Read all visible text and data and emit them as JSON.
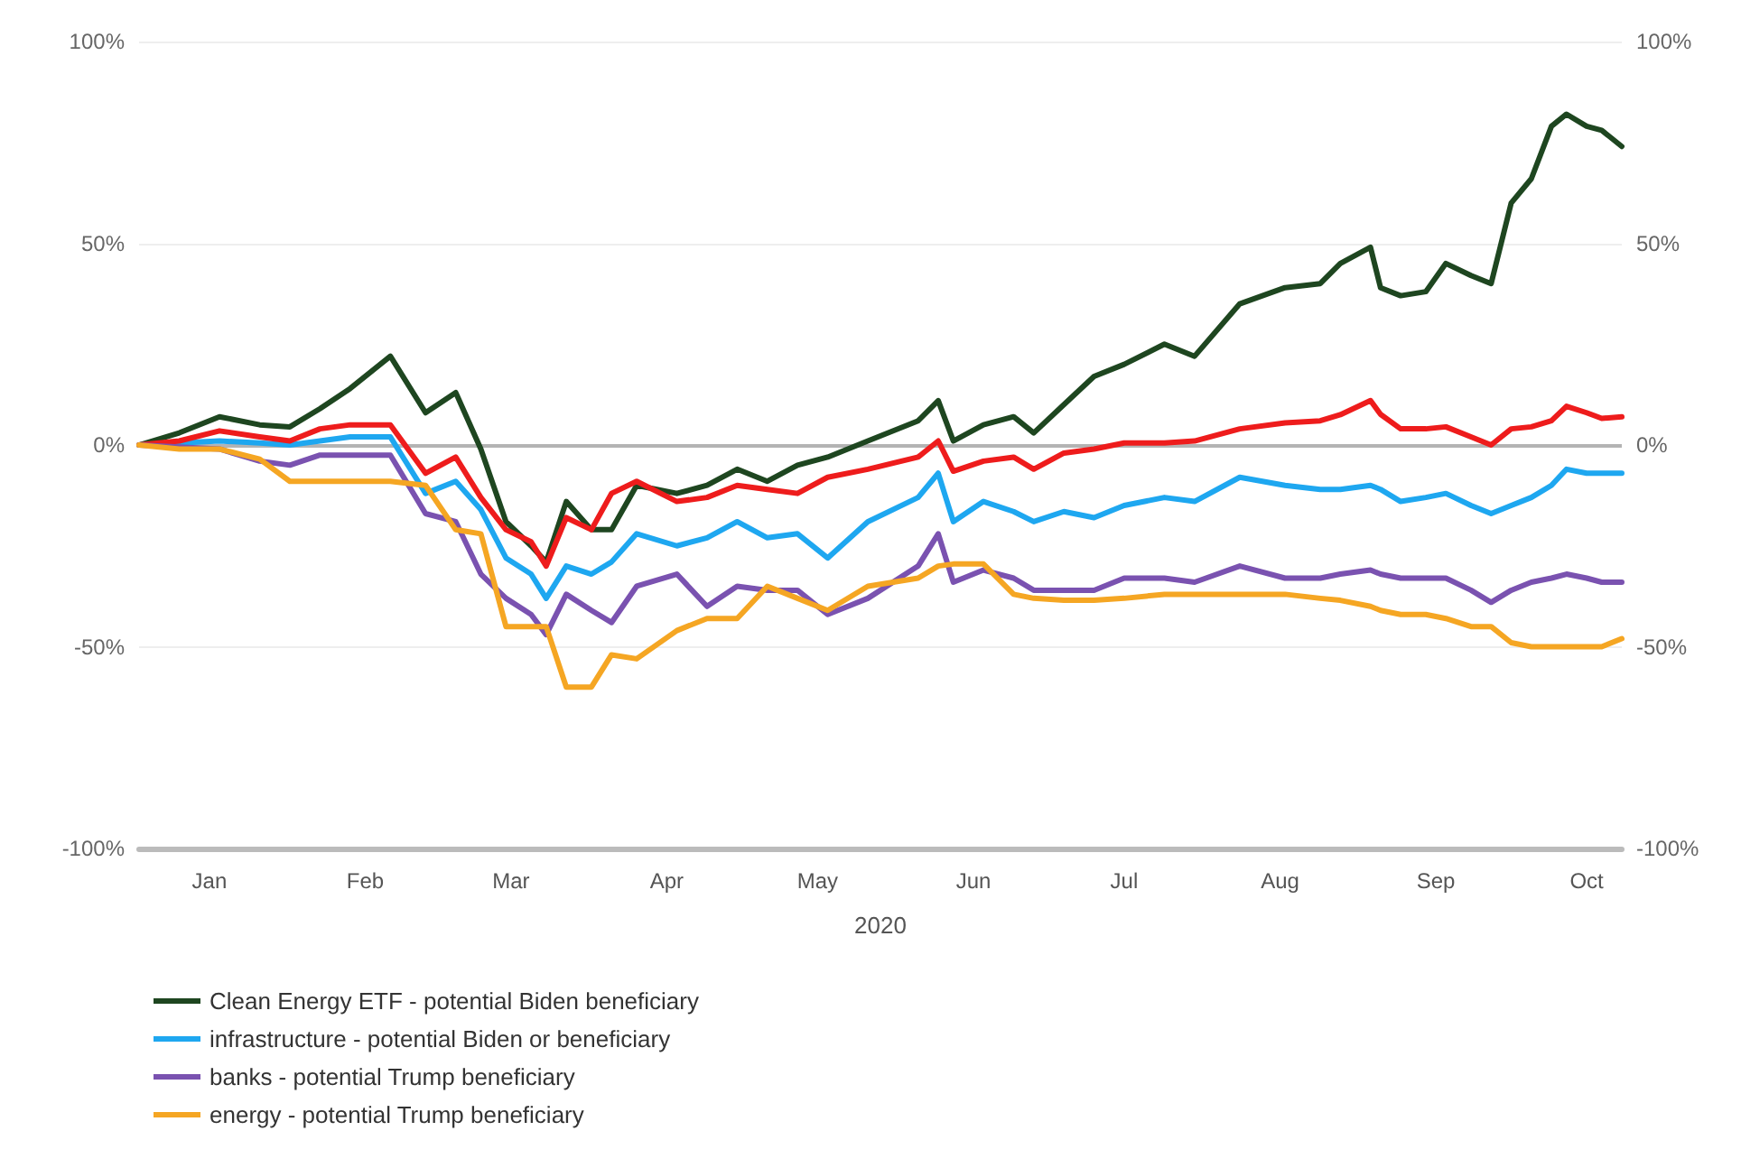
{
  "chart_data": {
    "type": "line",
    "xlabel": "2020",
    "x": [
      "2020-01-01",
      "2020-01-09",
      "2020-01-17",
      "2020-01-25",
      "2020-01-31",
      "2020-02-06",
      "2020-02-12",
      "2020-02-20",
      "2020-02-27",
      "2020-03-04",
      "2020-03-09",
      "2020-03-14",
      "2020-03-19",
      "2020-03-22",
      "2020-03-26",
      "2020-03-31",
      "2020-04-04",
      "2020-04-09",
      "2020-04-17",
      "2020-04-23",
      "2020-04-29",
      "2020-05-05",
      "2020-05-11",
      "2020-05-17",
      "2020-05-25",
      "2020-06-04",
      "2020-06-08",
      "2020-06-11",
      "2020-06-17",
      "2020-06-23",
      "2020-06-27",
      "2020-07-03",
      "2020-07-09",
      "2020-07-15",
      "2020-07-23",
      "2020-07-29",
      "2020-08-07",
      "2020-08-16",
      "2020-08-23",
      "2020-08-27",
      "2020-09-02",
      "2020-09-04",
      "2020-09-08",
      "2020-09-13",
      "2020-09-17",
      "2020-09-22",
      "2020-09-26",
      "2020-09-30",
      "2020-10-04",
      "2020-10-08",
      "2020-10-11",
      "2020-10-15",
      "2020-10-18",
      "2020-10-22"
    ],
    "series": [
      {
        "name": "Clean Energy ETF - potential Biden beneficiary",
        "color": "#1e4620",
        "values": [
          0,
          3,
          7,
          5,
          4.5,
          9,
          14,
          22,
          8,
          13,
          -1,
          -19,
          -25,
          -29,
          -14,
          -21,
          -21,
          -10,
          -12,
          -10,
          -6,
          -9,
          -5,
          -3,
          1,
          6,
          11,
          1,
          5,
          7,
          3,
          10,
          17,
          20,
          25,
          22,
          35,
          39,
          40,
          45,
          49,
          39,
          37,
          38,
          45,
          42,
          40,
          60,
          66,
          79,
          82,
          79,
          78,
          74
        ]
      },
      {
        "name": "infrastructure - potential Biden or beneficiary",
        "color": "#1ea7f0",
        "values": [
          0,
          0.5,
          1,
          0.5,
          0,
          1,
          2,
          2,
          -12,
          -9,
          -16,
          -28,
          -32,
          -38,
          -30,
          -32,
          -29,
          -22,
          -25,
          -23,
          -19,
          -23,
          -22,
          -28,
          -19,
          -13,
          -7,
          -19,
          -14,
          -16.5,
          -19,
          -16.5,
          -18,
          -15,
          -13,
          -14,
          -8,
          -10,
          -11,
          -11,
          -10,
          -11,
          -14,
          -13,
          -12,
          -15,
          -17,
          -15,
          -13,
          -10,
          -6,
          -7,
          -7,
          -7
        ]
      },
      {
        "color": "#ee1c1c",
        "values": [
          0,
          1,
          3.5,
          2,
          1,
          4,
          5,
          5,
          -7,
          -3,
          -13,
          -21,
          -24,
          -30,
          -18,
          -21,
          -12,
          -9,
          -14,
          -13,
          -10,
          -11,
          -12,
          -8,
          -6,
          -3,
          1,
          -6.5,
          -4,
          -3,
          -6,
          -2,
          -1,
          0.5,
          0.5,
          1,
          4,
          5.5,
          6,
          7.5,
          11,
          7.6,
          4,
          4,
          4.5,
          2,
          0,
          4,
          4.5,
          6,
          9.6,
          8,
          6.6,
          7
        ]
      },
      {
        "name": "banks - potential Trump beneficiary",
        "color": "#7a52b0",
        "values": [
          0,
          -0.5,
          -1,
          -4,
          -5,
          -2.5,
          -2.5,
          -2.5,
          -17,
          -19,
          -32,
          -38,
          -42,
          -47,
          -37,
          -41,
          -44,
          -35,
          -32,
          -40,
          -35,
          -36,
          -36,
          -42,
          -38,
          -30,
          -22,
          -34,
          -31,
          -33,
          -36,
          -36,
          -36,
          -33,
          -33,
          -34,
          -30,
          -33,
          -33,
          -32,
          -31,
          -32,
          -33,
          -33,
          -33,
          -36,
          -39,
          -36,
          -34,
          -33,
          -32,
          -33,
          -34,
          -34
        ]
      },
      {
        "name": "energy - potential Trump beneficiary",
        "color": "#f5a623",
        "values": [
          0,
          -1,
          -1,
          -3.5,
          -9,
          -9,
          -9,
          -9,
          -10,
          -21,
          -22,
          -45,
          -45,
          -45,
          -60,
          -60,
          -52,
          -53,
          -46,
          -43,
          -43,
          -35,
          -38,
          -41,
          -35,
          -33,
          -30,
          -29.5,
          -29.5,
          -37,
          -38,
          -38.5,
          -38.5,
          -38,
          -37,
          -37,
          -37,
          -37,
          -38,
          -38.5,
          -40,
          -41,
          -42,
          -42,
          -43,
          -45,
          -45,
          -49,
          -50,
          -50,
          -50,
          -50,
          -50,
          -48
        ]
      }
    ],
    "xlim": [
      "2020-01-01",
      "2020-10-22"
    ],
    "xticks": [
      {
        "value": "2020-01-15",
        "label": "Jan"
      },
      {
        "value": "2020-02-15",
        "label": "Feb"
      },
      {
        "value": "2020-03-15",
        "label": "Mar"
      },
      {
        "value": "2020-04-15",
        "label": "Apr"
      },
      {
        "value": "2020-05-15",
        "label": "May"
      },
      {
        "value": "2020-06-15",
        "label": "Jun"
      },
      {
        "value": "2020-07-15",
        "label": "Jul"
      },
      {
        "value": "2020-08-15",
        "label": "Aug"
      },
      {
        "value": "2020-09-15",
        "label": "Sep"
      },
      {
        "value": "2020-10-15",
        "label": "Oct"
      }
    ],
    "ylim": [
      -100,
      100
    ],
    "yticks": [
      {
        "value": -100,
        "label": "-100%"
      },
      {
        "value": -50,
        "label": "-50%"
      },
      {
        "value": 0,
        "label": "0%"
      },
      {
        "value": 50,
        "label": "50%"
      },
      {
        "value": 100,
        "label": "100%"
      }
    ],
    "y2lim": [
      -100,
      100
    ],
    "y2ticks": [
      {
        "value": -100,
        "label": "-100%"
      },
      {
        "value": -50,
        "label": "-50%"
      },
      {
        "value": 0,
        "label": "0%"
      },
      {
        "value": 50,
        "label": "50%"
      },
      {
        "value": 100,
        "label": "100%"
      }
    ],
    "ref_lines": [
      {
        "axis": "y",
        "value": 0,
        "color": "#b4b4b4"
      }
    ],
    "grid": "y",
    "legend": "bottom",
    "marker": "none",
    "line_style": "solid"
  }
}
